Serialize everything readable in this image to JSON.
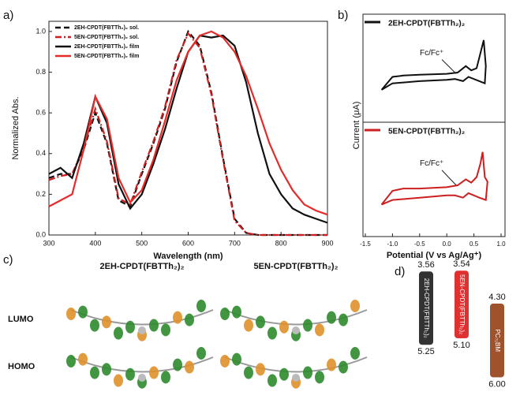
{
  "panel_labels": [
    "a)",
    "b)",
    "c)",
    "d)"
  ],
  "chart_data": [
    {
      "type": "line",
      "x_label": "Wavelength (nm)",
      "y_label": "Normalized Abs.",
      "x": [
        300,
        325,
        350,
        375,
        400,
        425,
        450,
        475,
        500,
        525,
        550,
        575,
        600,
        625,
        650,
        675,
        700,
        725,
        750,
        775,
        800,
        825,
        850,
        875,
        900
      ],
      "xlim": [
        300,
        900
      ],
      "xticks": [
        300,
        400,
        500,
        600,
        700,
        800,
        900
      ],
      "ylim": [
        0,
        1.05
      ],
      "yticks": [
        {
          "value": 0,
          "label": "0.0"
        },
        0.2,
        0.4,
        0.6,
        0.8,
        {
          "value": 1,
          "label": "1.0"
        }
      ],
      "legend": "upper-left",
      "series": [
        {
          "name": "2EH-CPDT(FBTTh₂)₂ sol.",
          "color": "#111111",
          "dash": "dash",
          "values": [
            0.28,
            0.3,
            0.3,
            0.42,
            0.6,
            0.45,
            0.17,
            0.14,
            0.3,
            0.45,
            0.62,
            0.85,
            1.0,
            0.93,
            0.7,
            0.38,
            0.08,
            0.01,
            0,
            0,
            0,
            0,
            0,
            0,
            0
          ]
        },
        {
          "name": "5EN-CPDT(FBTTh₂)₂ sol.",
          "color": "#cc1f1f",
          "dash": "dashdot",
          "values": [
            0.27,
            0.29,
            0.3,
            0.43,
            0.62,
            0.46,
            0.18,
            0.15,
            0.31,
            0.46,
            0.63,
            0.86,
            0.99,
            0.92,
            0.69,
            0.37,
            0.07,
            0.01,
            0,
            0,
            0,
            0,
            0,
            0,
            0
          ]
        },
        {
          "name": "2EH-CPDT(FBTTh₂)₂ film",
          "color": "#111111",
          "dash": "solid",
          "values": [
            0.3,
            0.33,
            0.28,
            0.45,
            0.68,
            0.55,
            0.25,
            0.13,
            0.2,
            0.35,
            0.52,
            0.72,
            0.9,
            0.98,
            0.97,
            0.98,
            0.93,
            0.75,
            0.5,
            0.3,
            0.2,
            0.13,
            0.1,
            0.08,
            0.06
          ]
        },
        {
          "name": "5EN-CPDT(FBTTh₂)₂ film",
          "color": "#e52a2a",
          "dash": "solid",
          "values": [
            0.14,
            0.17,
            0.2,
            0.42,
            0.68,
            0.57,
            0.28,
            0.16,
            0.22,
            0.37,
            0.56,
            0.76,
            0.9,
            0.98,
            1.0,
            0.97,
            0.9,
            0.78,
            0.62,
            0.45,
            0.32,
            0.22,
            0.15,
            0.12,
            0.1
          ]
        }
      ]
    },
    {
      "type": "cv",
      "x_label": "Potential (V vs Ag/Ag⁺)",
      "y_label": "Current (μA)",
      "xlim": [
        -1.5,
        1.0
      ],
      "xticks": [
        {
          "value": -1.5,
          "label": "-1.5"
        },
        {
          "value": -1,
          "label": "-1.0"
        },
        {
          "value": -0.5,
          "label": "-0.5"
        },
        {
          "value": 0,
          "label": "0.0"
        },
        0.5,
        {
          "value": 1,
          "label": "1.0"
        }
      ],
      "ylim": [
        -1,
        1
      ],
      "series": [
        {
          "name": "2EH-CPDT(FBTTh₂)₂",
          "color": "#111111",
          "annotation": "Fc/Fc⁺",
          "x": [
            -1.2,
            -1.0,
            -0.8,
            -0.5,
            0,
            0.2,
            0.35,
            0.45,
            0.55,
            0.62,
            0.68,
            0.72,
            0.7,
            0.6,
            0.4,
            0.3,
            0.15,
            0,
            -0.5,
            -1.0,
            -1.2
          ],
          "y": [
            -0.25,
            0.05,
            0.08,
            0.1,
            0.12,
            0.15,
            0.3,
            0.2,
            0.25,
            0.6,
            0.9,
            0.3,
            -0.1,
            -0.05,
            0.05,
            -0.05,
            0,
            -0.02,
            -0.05,
            -0.1,
            -0.25
          ]
        },
        {
          "name": "5EN-CPDT(FBTTh₂)₂",
          "color": "#cc1f1f",
          "annotation": "Fc/Fc⁺",
          "x": [
            -1.2,
            -1.0,
            -0.8,
            -0.5,
            0,
            0.2,
            0.35,
            0.45,
            0.55,
            0.62,
            0.66,
            0.7,
            0.75,
            0.72,
            0.6,
            0.4,
            0.3,
            0.15,
            0,
            -0.5,
            -1.0,
            -1.2
          ],
          "y": [
            -0.3,
            0.0,
            0.05,
            0.05,
            0.08,
            0.12,
            0.25,
            0.18,
            0.3,
            0.6,
            0.85,
            0.3,
            0.2,
            -0.2,
            -0.15,
            -0.05,
            -0.15,
            -0.1,
            -0.1,
            -0.15,
            -0.2,
            -0.3
          ]
        }
      ]
    },
    {
      "type": "energy",
      "series": [
        {
          "name": "2EH-CPDT(FBTTh₂)₂",
          "color": "#333333",
          "values": [
            3.56,
            5.25
          ],
          "value_labels": [
            "3.56",
            "5.25"
          ]
        },
        {
          "name": "5EN-CPDT(FBTTh₂)₂",
          "color": "#e03030",
          "values": [
            3.54,
            5.1
          ],
          "value_labels": [
            "3.54",
            "5.10"
          ]
        },
        {
          "name": "PC₇₁BM",
          "color": "#a0522d",
          "values": [
            4.3,
            6
          ],
          "value_labels": [
            "4.30",
            "6.00"
          ]
        }
      ]
    }
  ],
  "panel_c": {
    "molecules": [
      "2EH-CPDT(FBTTh₂)₂",
      "5EN-CPDT(FBTTh₂)₂"
    ],
    "rows": [
      "LUMO",
      "HOMO"
    ]
  }
}
